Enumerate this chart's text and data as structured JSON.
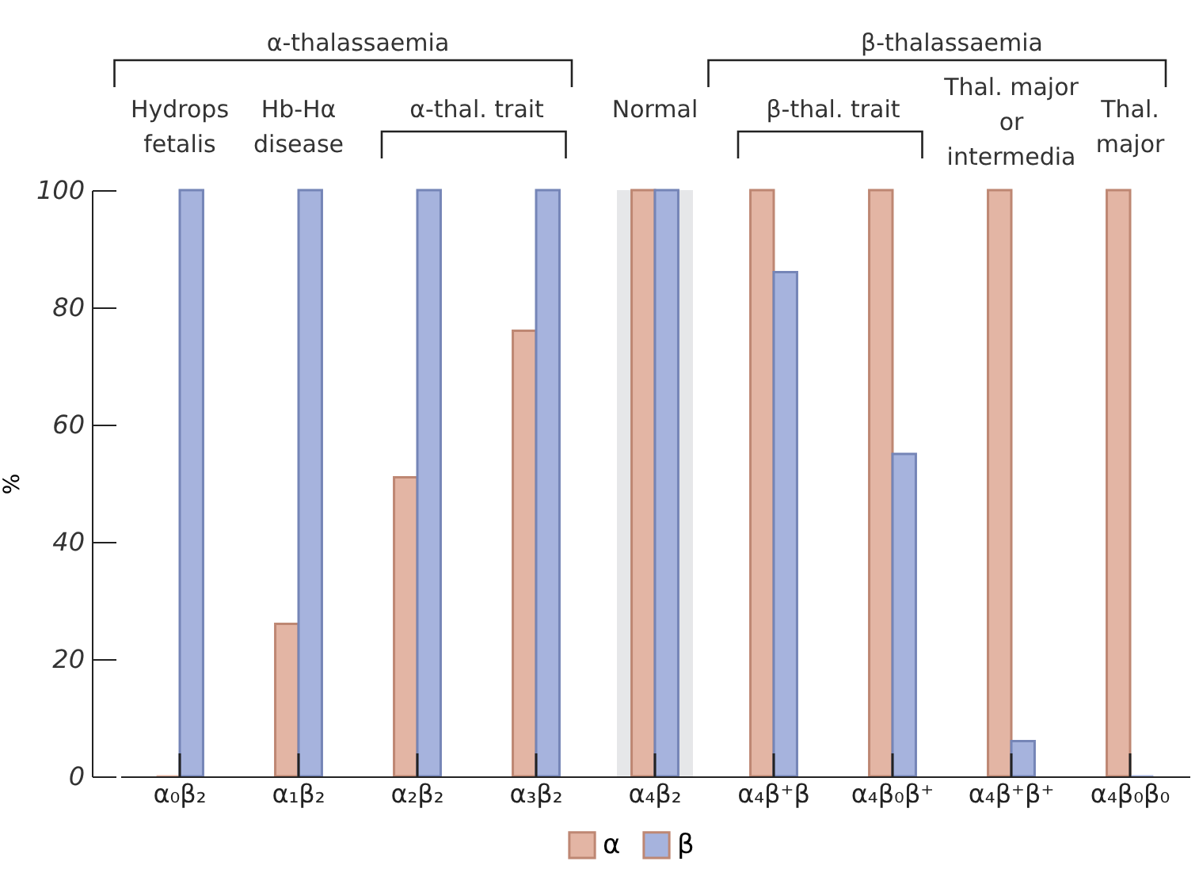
{
  "chart_data": {
    "type": "bar",
    "categories": [
      "α₀β₂",
      "α₁β₂",
      "α₂β₂",
      "α₃β₂",
      "α₄β₂",
      "α₄β⁺β",
      "α₄β₀β⁺",
      "α₄β⁺β⁺",
      "α₄β₀β₀"
    ],
    "series": [
      {
        "name": "α",
        "color": "#e3b5a4",
        "values": [
          0,
          26,
          51,
          76,
          100,
          100,
          100,
          100,
          100
        ]
      },
      {
        "name": "β",
        "color": "#a6b3dd",
        "values": [
          100,
          100,
          100,
          100,
          100,
          86,
          55,
          6,
          0
        ]
      }
    ],
    "ylabel": "%",
    "ylim": [
      0,
      100
    ],
    "yticks": [
      0,
      20,
      40,
      60,
      80,
      100
    ],
    "bands": [
      {
        "axis": "x",
        "from": "α₄β₂",
        "to": "α₄β₂",
        "label": "Normal",
        "color": "#e6e7e9"
      }
    ],
    "annotations": [
      "α-thalassaemia",
      "β-thalassaemia",
      "Hydrops\nfetalis",
      "Hb-Hα\ndisease",
      "α-thal. trait",
      "β-thal. trait",
      "Thal. major\nor\nintermedia",
      "Thal.\nmajor"
    ],
    "legend": "bottom",
    "grid": false
  }
}
